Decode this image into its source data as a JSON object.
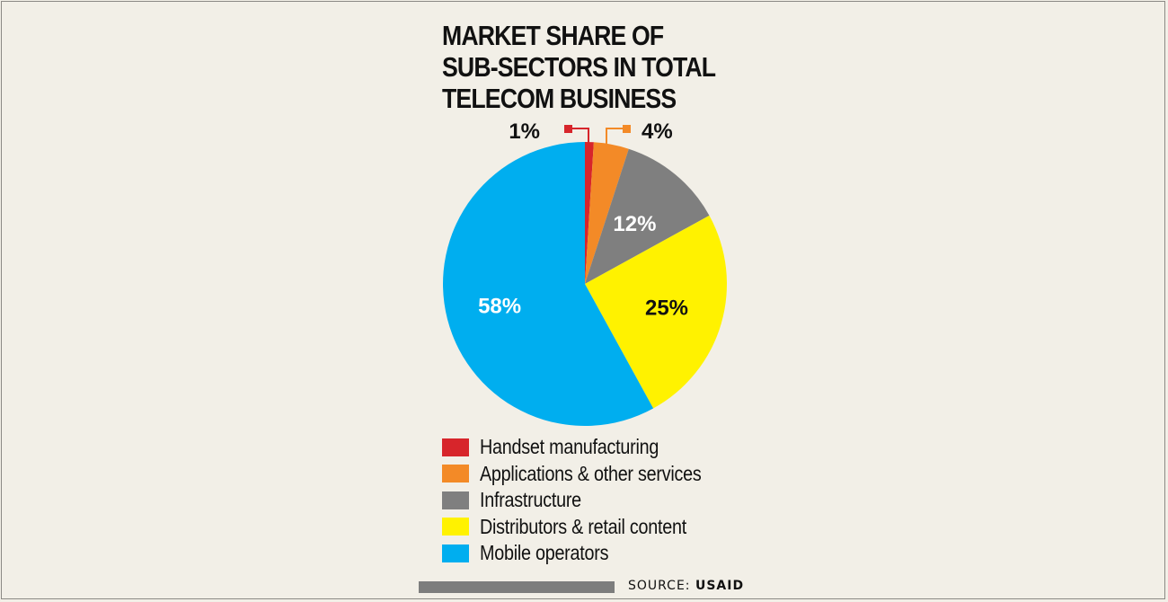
{
  "chart_data": {
    "type": "pie",
    "title_lines": [
      "MARKET SHARE OF",
      "SUB-SECTORS IN TOTAL",
      "TELECOM BUSINESS"
    ],
    "slices": [
      {
        "name": "Handset manufacturing",
        "value": 1,
        "label": "1%",
        "color": "#d7252b"
      },
      {
        "name": "Applications & other services",
        "value": 4,
        "label": "4%",
        "color": "#f38a27"
      },
      {
        "name": "Infrastructure",
        "value": 12,
        "label": "12%",
        "color": "#7f7f7f"
      },
      {
        "name": "Distributors & retail content",
        "value": 25,
        "label": "25%",
        "color": "#fff200"
      },
      {
        "name": "Mobile operators",
        "value": 58,
        "label": "58%",
        "color": "#00aeef"
      }
    ],
    "start": "12 o'clock",
    "direction": "clockwise",
    "legend_position": "bottom"
  },
  "source": {
    "prefix": "SOURCE:",
    "name": "USAID"
  }
}
